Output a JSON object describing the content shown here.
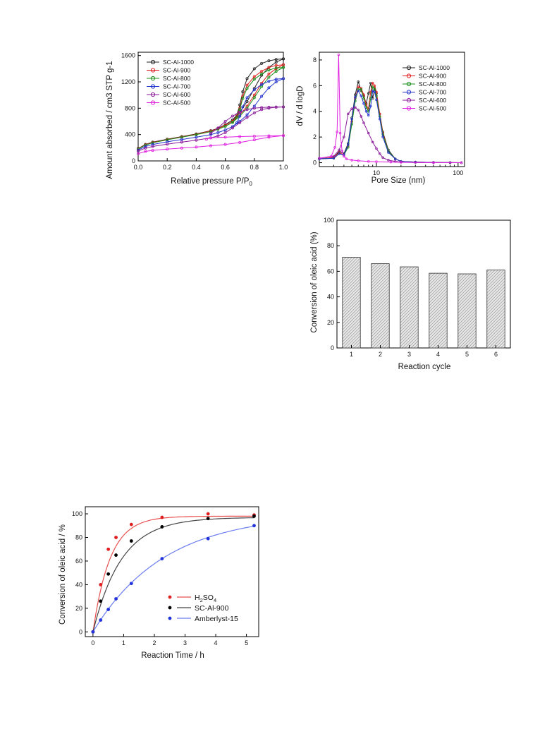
{
  "chart_data": [
    {
      "type": "line",
      "xlabel": "Relative pressure P/P0",
      "xlabel_main": "Relative pressure P/P",
      "xlabel_sub": "0",
      "ylabel": "Amount absorbed / cm3 STP g-1",
      "xlim": [
        0,
        1.0
      ],
      "ylim": [
        0,
        1650
      ],
      "xticks": [
        "0.0",
        "0.2",
        "0.4",
        "0.6",
        "0.8",
        "1.0"
      ],
      "yticks": [
        "0",
        "400",
        "800",
        "1200",
        "1600"
      ],
      "legend_position": "top-left",
      "series": [
        {
          "name": "SC-Al-1000",
          "color": "#222222",
          "x": [
            0.0,
            0.05,
            0.1,
            0.2,
            0.3,
            0.4,
            0.5,
            0.55,
            0.6,
            0.65,
            0.7,
            0.75,
            0.8,
            0.85,
            0.9,
            0.95,
            1.0
          ],
          "ads": [
            190,
            250,
            285,
            330,
            370,
            410,
            460,
            495,
            550,
            620,
            740,
            900,
            1100,
            1300,
            1420,
            1500,
            1550
          ],
          "des_x": [
            1.0,
            0.95,
            0.9,
            0.85,
            0.8,
            0.75,
            0.72,
            0.7,
            0.68,
            0.65
          ],
          "des": [
            1550,
            1540,
            1520,
            1480,
            1400,
            1250,
            1050,
            850,
            700,
            620
          ]
        },
        {
          "name": "SC-Al-900",
          "color": "#e02020",
          "x": [
            0.0,
            0.05,
            0.1,
            0.2,
            0.3,
            0.4,
            0.5,
            0.55,
            0.6,
            0.65,
            0.7,
            0.75,
            0.8,
            0.85,
            0.9,
            0.95,
            1.0
          ],
          "ads": [
            185,
            245,
            280,
            325,
            365,
            405,
            455,
            490,
            540,
            600,
            700,
            830,
            1000,
            1180,
            1320,
            1400,
            1460
          ],
          "des_x": [
            1.0,
            0.95,
            0.9,
            0.85,
            0.8,
            0.75,
            0.72,
            0.7,
            0.68,
            0.65
          ],
          "des": [
            1460,
            1450,
            1420,
            1360,
            1280,
            1150,
            980,
            800,
            680,
            600
          ]
        },
        {
          "name": "SC-Al-800",
          "color": "#1a8f1a",
          "x": [
            0.0,
            0.05,
            0.1,
            0.2,
            0.3,
            0.4,
            0.5,
            0.55,
            0.6,
            0.65,
            0.7,
            0.75,
            0.8,
            0.85,
            0.9,
            0.95,
            1.0
          ],
          "ads": [
            180,
            240,
            275,
            320,
            360,
            400,
            445,
            480,
            525,
            585,
            680,
            800,
            960,
            1130,
            1270,
            1360,
            1420
          ],
          "des_x": [
            1.0,
            0.95,
            0.9,
            0.85,
            0.8,
            0.75,
            0.72,
            0.7,
            0.68,
            0.65
          ],
          "des": [
            1420,
            1410,
            1380,
            1320,
            1240,
            1100,
            950,
            780,
            660,
            585
          ]
        },
        {
          "name": "SC-Al-700",
          "color": "#2233cc",
          "x": [
            0.0,
            0.05,
            0.1,
            0.2,
            0.3,
            0.4,
            0.5,
            0.55,
            0.6,
            0.65,
            0.7,
            0.75,
            0.8,
            0.85,
            0.9,
            0.95,
            1.0
          ],
          "ads": [
            165,
            220,
            250,
            290,
            325,
            360,
            400,
            430,
            470,
            520,
            600,
            700,
            830,
            980,
            1110,
            1200,
            1250
          ],
          "des_x": [
            1.0,
            0.95,
            0.9,
            0.85,
            0.8,
            0.75,
            0.72,
            0.7,
            0.68,
            0.65
          ],
          "des": [
            1250,
            1240,
            1210,
            1160,
            1080,
            960,
            820,
            680,
            580,
            520
          ]
        },
        {
          "name": "SC-Al-600",
          "color": "#8a1a9a",
          "x": [
            0.0,
            0.05,
            0.1,
            0.2,
            0.3,
            0.4,
            0.5,
            0.55,
            0.6,
            0.65,
            0.7,
            0.75,
            0.8,
            0.85,
            0.9,
            0.95,
            1.0
          ],
          "ads": [
            150,
            195,
            220,
            255,
            285,
            315,
            350,
            380,
            430,
            500,
            580,
            660,
            730,
            780,
            800,
            815,
            820
          ],
          "des_x": [
            1.0,
            0.95,
            0.9,
            0.85,
            0.8,
            0.75,
            0.7,
            0.65,
            0.6,
            0.55,
            0.5
          ],
          "des": [
            820,
            818,
            815,
            810,
            800,
            780,
            740,
            680,
            600,
            500,
            420
          ]
        },
        {
          "name": "SC-Al-500",
          "color": "#e020e0",
          "x": [
            0.0,
            0.05,
            0.1,
            0.2,
            0.3,
            0.4,
            0.5,
            0.6,
            0.7,
            0.8,
            0.9,
            1.0
          ],
          "ads": [
            110,
            145,
            160,
            180,
            195,
            210,
            230,
            250,
            280,
            320,
            360,
            385
          ],
          "des_x": [
            1.0,
            0.9,
            0.8,
            0.7,
            0.6,
            0.5,
            0.47
          ],
          "des": [
            385,
            380,
            375,
            370,
            360,
            350,
            330
          ]
        }
      ]
    },
    {
      "type": "line",
      "xlabel": "Pore Size (nm)",
      "ylabel": "dV / d logD",
      "xscale": "log",
      "xlim": [
        2,
        120
      ],
      "ylim": [
        -0.3,
        8.6
      ],
      "xticks": [
        "10",
        "100"
      ],
      "xtick_values": [
        10,
        100
      ],
      "yticks": [
        "0",
        "2",
        "4",
        "6",
        "8"
      ],
      "legend_position": "top-right",
      "series": [
        {
          "name": "SC-Al-1000",
          "color": "#222222",
          "x": [
            2,
            3,
            3.5,
            4,
            4.5,
            5,
            5.5,
            6,
            6.5,
            7,
            7.5,
            8,
            8.5,
            9,
            9.5,
            10,
            11,
            12,
            14,
            17,
            20,
            30,
            50,
            80,
            110
          ],
          "y": [
            0.3,
            0.4,
            0.9,
            0.7,
            1.5,
            3.5,
            5.3,
            6.3,
            5.6,
            5.2,
            4.6,
            5.4,
            6.2,
            5.0,
            5.8,
            5.4,
            3.8,
            2.4,
            1.0,
            0.3,
            0.1,
            0.05,
            0.02,
            0.01,
            0.0
          ]
        },
        {
          "name": "SC-Al-900",
          "color": "#e02020",
          "x": [
            2,
            3,
            3.5,
            4,
            4.5,
            5,
            5.5,
            6,
            6.5,
            7,
            7.5,
            8,
            8.5,
            9,
            9.5,
            10,
            11,
            12,
            14,
            17,
            20,
            30,
            50,
            80,
            110
          ],
          "y": [
            0.3,
            0.4,
            0.8,
            0.6,
            1.3,
            3.2,
            5.0,
            5.9,
            5.8,
            5.3,
            4.5,
            4.2,
            5.5,
            6.2,
            6.0,
            5.5,
            3.8,
            2.3,
            0.9,
            0.3,
            0.1,
            0.05,
            0.02,
            0.01,
            0.0
          ]
        },
        {
          "name": "SC-Al-800",
          "color": "#1a8f1a",
          "x": [
            2,
            3,
            3.5,
            4,
            4.5,
            5,
            5.5,
            6,
            6.5,
            7,
            7.5,
            8,
            8.5,
            9,
            9.5,
            10,
            11,
            12,
            14,
            17,
            20,
            30,
            50,
            80,
            110
          ],
          "y": [
            0.3,
            0.35,
            0.7,
            0.6,
            1.2,
            3.0,
            4.8,
            5.7,
            5.7,
            5.0,
            4.3,
            4.0,
            5.0,
            5.9,
            5.7,
            5.2,
            3.6,
            2.2,
            0.9,
            0.3,
            0.1,
            0.05,
            0.02,
            0.01,
            0.0
          ]
        },
        {
          "name": "SC-Al-700",
          "color": "#2233cc",
          "x": [
            2,
            3,
            3.5,
            4,
            4.5,
            5,
            5.5,
            6,
            6.5,
            7,
            7.5,
            8,
            8.5,
            9,
            9.5,
            10,
            11,
            12,
            14,
            17,
            20,
            30,
            50,
            80,
            110
          ],
          "y": [
            0.3,
            0.35,
            0.7,
            0.6,
            1.4,
            3.4,
            5.1,
            5.6,
            5.2,
            4.6,
            4.0,
            3.7,
            4.4,
            5.6,
            5.5,
            4.9,
            3.4,
            2.0,
            0.8,
            0.3,
            0.1,
            0.05,
            0.02,
            0.01,
            0.0
          ]
        },
        {
          "name": "SC-Al-600",
          "color": "#8a1a9a",
          "x": [
            2,
            3,
            3.5,
            4,
            4.5,
            5,
            5.5,
            6,
            6.5,
            7,
            8,
            9,
            10,
            11,
            12,
            14,
            17,
            20,
            30,
            50,
            80,
            110
          ],
          "y": [
            0.35,
            0.5,
            1.0,
            2.0,
            3.8,
            4.2,
            4.3,
            4.1,
            3.6,
            3.1,
            2.3,
            1.6,
            1.1,
            0.7,
            0.4,
            0.2,
            0.1,
            0.05,
            0.02,
            0.01,
            0.0,
            0.0
          ]
        },
        {
          "name": "SC-Al-500",
          "color": "#e020e0",
          "x": [
            2,
            2.8,
            3.1,
            3.3,
            3.45,
            3.6,
            3.8,
            4.0,
            4.3,
            5,
            6,
            8,
            10,
            15,
            20,
            50,
            110
          ],
          "y": [
            0.35,
            0.5,
            1.2,
            2.4,
            8.4,
            2.3,
            0.9,
            0.5,
            0.3,
            0.2,
            0.15,
            0.1,
            0.08,
            0.05,
            0.03,
            0.0,
            0.0
          ]
        }
      ]
    },
    {
      "type": "bar",
      "xlabel": "Reaction cycle",
      "ylabel": "Conversion of oleic acid (%)",
      "categories": [
        "1",
        "2",
        "3",
        "4",
        "5",
        "6"
      ],
      "values": [
        71,
        66,
        63.5,
        58.5,
        58,
        61
      ],
      "ylim": [
        0,
        100
      ],
      "yticks": [
        "0",
        "20",
        "40",
        "60",
        "80",
        "100"
      ]
    },
    {
      "type": "scatter",
      "xlabel": "Reaction Time / h",
      "ylabel": "Conversion of oleic acid / %",
      "xlim": [
        -0.25,
        5.4
      ],
      "ylim": [
        -4,
        106
      ],
      "xticks": [
        "0",
        "1",
        "2",
        "3",
        "4",
        "5"
      ],
      "yticks": [
        "0",
        "20",
        "40",
        "60",
        "80",
        "100"
      ],
      "legend_position": "bottom-right",
      "series": [
        {
          "name": "H2SO4",
          "name_main": "H",
          "name_sub": "2",
          "name_rest": "SO",
          "name_sub2": "4",
          "color": "#e02020",
          "line_color": "#e85050",
          "x": [
            0,
            0.25,
            0.5,
            0.75,
            1.25,
            2.25,
            3.75,
            5.25
          ],
          "y": [
            0,
            40,
            70,
            80,
            91,
            97,
            100,
            99
          ],
          "fit": {
            "plateau": 98,
            "k": 1.8
          }
        },
        {
          "name": "SC-Al-900",
          "color": "#000000",
          "line_color": "#444444",
          "x": [
            0,
            0.25,
            0.5,
            0.75,
            1.25,
            2.25,
            3.75,
            5.25
          ],
          "y": [
            0,
            26,
            49,
            65,
            77,
            89,
            96,
            98
          ],
          "fit": {
            "plateau": 97,
            "k": 1.08
          }
        },
        {
          "name": "Amberlyst-15",
          "color": "#2233dd",
          "line_color": "#6a7cf0",
          "x": [
            0,
            0.25,
            0.5,
            0.75,
            1.25,
            2.25,
            3.75,
            5.25
          ],
          "y": [
            0,
            10,
            19,
            28,
            41,
            62,
            79,
            90
          ],
          "fit": {
            "plateau": 100,
            "k": 0.43
          }
        }
      ]
    }
  ]
}
